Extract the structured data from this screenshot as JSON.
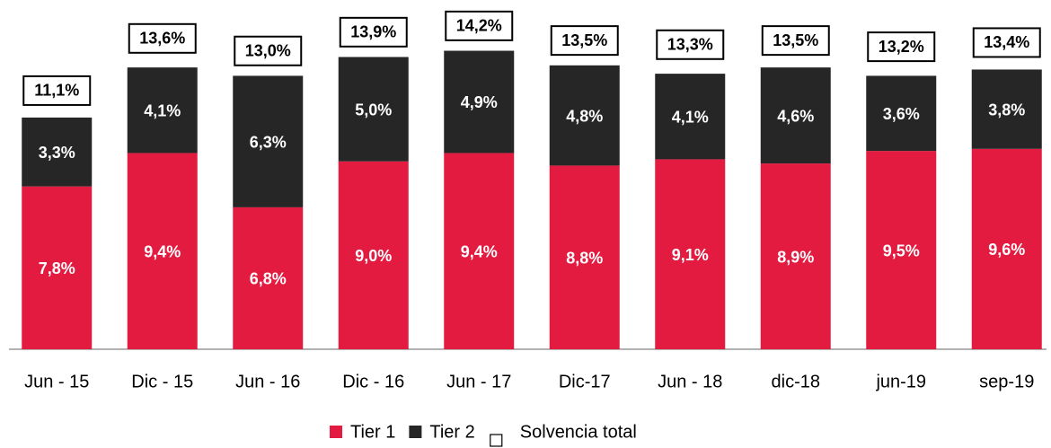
{
  "chart_data": {
    "type": "stacked_bar",
    "categories": [
      "Jun - 15",
      "Dic - 15",
      "Jun - 16",
      "Dic - 16",
      "Jun - 17",
      "Dic-17",
      "Jun - 18",
      "dic-18",
      "jun-19",
      "sep-19"
    ],
    "series": [
      {
        "name": "Tier 1",
        "color": "#e31b40",
        "values": [
          7.8,
          9.4,
          6.8,
          9.0,
          9.4,
          8.8,
          9.1,
          8.9,
          9.5,
          9.6
        ],
        "value_labels": [
          "7,8%",
          "9,4%",
          "6,8%",
          "9,0%",
          "9,4%",
          "8,8%",
          "9,1%",
          "8,9%",
          "9,5%",
          "9,6%"
        ]
      },
      {
        "name": "Tier 2",
        "color": "#262626",
        "values": [
          3.3,
          4.1,
          6.3,
          5.0,
          4.9,
          4.8,
          4.1,
          4.6,
          3.6,
          3.8
        ],
        "value_labels": [
          "3,3%",
          "4,1%",
          "6,3%",
          "5,0%",
          "4,9%",
          "4,8%",
          "4,1%",
          "4,6%",
          "3,6%",
          "3,8%"
        ]
      }
    ],
    "total": {
      "name": "Solvencia total",
      "values": [
        11.1,
        13.6,
        13.0,
        13.9,
        14.2,
        13.5,
        13.3,
        13.5,
        13.2,
        13.4
      ],
      "value_labels": [
        "11,1%",
        "13,6%",
        "13,0%",
        "13,9%",
        "14,2%",
        "13,5%",
        "13,3%",
        "13,5%",
        "13,2%",
        "13,4%"
      ]
    },
    "ylim": [
      0,
      16
    ]
  }
}
